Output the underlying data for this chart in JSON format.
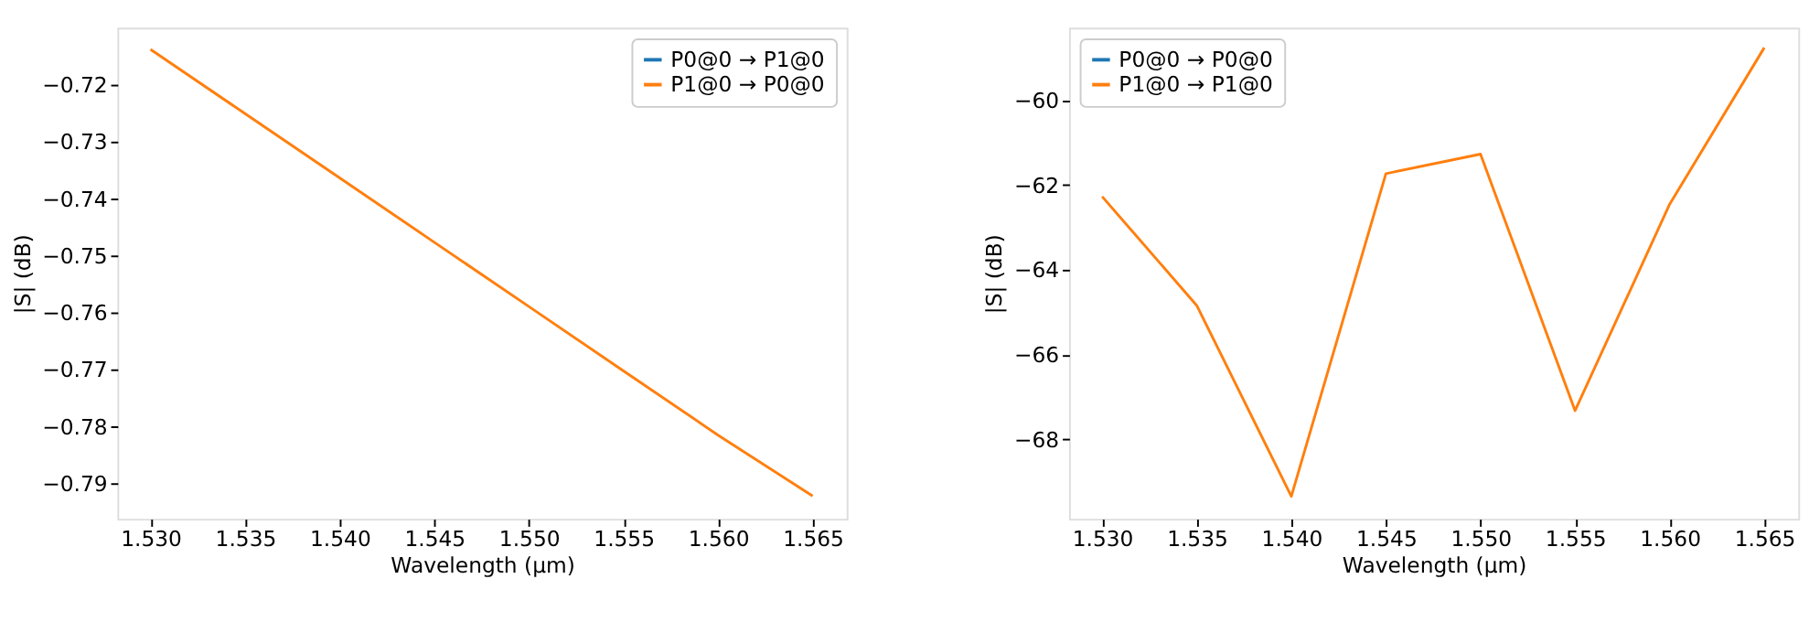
{
  "chart_data": [
    {
      "type": "line",
      "xlabel": "Wavelength (µm)",
      "ylabel": "|S| (dB)",
      "x": [
        1.53,
        1.535,
        1.54,
        1.545,
        1.55,
        1.555,
        1.56,
        1.565
      ],
      "series": [
        {
          "name": "P0@0 → P1@0",
          "color": "#1f77b4",
          "values": [
            null,
            null,
            null,
            null,
            null,
            null,
            null,
            null
          ]
        },
        {
          "name": "P1@0 → P0@0",
          "color": "#ff7f0e",
          "values": [
            -0.7138,
            -0.7251,
            -0.7364,
            -0.7477,
            -0.759,
            -0.7703,
            -0.7816,
            -0.7923
          ]
        }
      ],
      "xlim": [
        1.52825,
        1.5668
      ],
      "ylim": [
        -0.7963,
        -0.71
      ],
      "xticks": [
        {
          "value": 1.53,
          "label": "1.530"
        },
        {
          "value": 1.535,
          "label": "1.535"
        },
        {
          "value": 1.54,
          "label": "1.540"
        },
        {
          "value": 1.545,
          "label": "1.545"
        },
        {
          "value": 1.55,
          "label": "1.550"
        },
        {
          "value": 1.555,
          "label": "1.555"
        },
        {
          "value": 1.56,
          "label": "1.560"
        },
        {
          "value": 1.565,
          "label": "1.565"
        }
      ],
      "yticks": [
        {
          "value": -0.79,
          "label": "−0.79"
        },
        {
          "value": -0.78,
          "label": "−0.78"
        },
        {
          "value": -0.77,
          "label": "−0.77"
        },
        {
          "value": -0.76,
          "label": "−0.76"
        },
        {
          "value": -0.75,
          "label": "−0.75"
        },
        {
          "value": -0.74,
          "label": "−0.74"
        },
        {
          "value": -0.73,
          "label": "−0.73"
        },
        {
          "value": -0.72,
          "label": "−0.72"
        }
      ],
      "grid": false,
      "legend": "top right",
      "line_style": "solid",
      "marker": "none"
    },
    {
      "type": "line",
      "xlabel": "Wavelength (µm)",
      "ylabel": "|S| (dB)",
      "x": [
        1.53,
        1.535,
        1.54,
        1.545,
        1.55,
        1.555,
        1.56,
        1.565
      ],
      "series": [
        {
          "name": "P0@0 → P0@0",
          "color": "#1f77b4",
          "values": [
            null,
            null,
            null,
            null,
            null,
            null,
            null,
            null
          ]
        },
        {
          "name": "P1@0 → P1@0",
          "color": "#ff7f0e",
          "values": [
            -62.28,
            -64.85,
            -69.35,
            -61.74,
            -61.28,
            -67.33,
            -62.46,
            -58.77
          ]
        }
      ],
      "xlim": [
        1.52825,
        1.5668
      ],
      "ylim": [
        -69.88,
        -58.3
      ],
      "xticks": [
        {
          "value": 1.53,
          "label": "1.530"
        },
        {
          "value": 1.535,
          "label": "1.535"
        },
        {
          "value": 1.54,
          "label": "1.540"
        },
        {
          "value": 1.545,
          "label": "1.545"
        },
        {
          "value": 1.55,
          "label": "1.550"
        },
        {
          "value": 1.555,
          "label": "1.555"
        },
        {
          "value": 1.56,
          "label": "1.560"
        },
        {
          "value": 1.565,
          "label": "1.565"
        }
      ],
      "yticks": [
        {
          "value": -68,
          "label": "−68"
        },
        {
          "value": -66,
          "label": "−66"
        },
        {
          "value": -64,
          "label": "−64"
        },
        {
          "value": -62,
          "label": "−62"
        },
        {
          "value": -60,
          "label": "−60"
        }
      ],
      "grid": false,
      "legend": "top left",
      "line_style": "solid",
      "marker": "none"
    }
  ]
}
